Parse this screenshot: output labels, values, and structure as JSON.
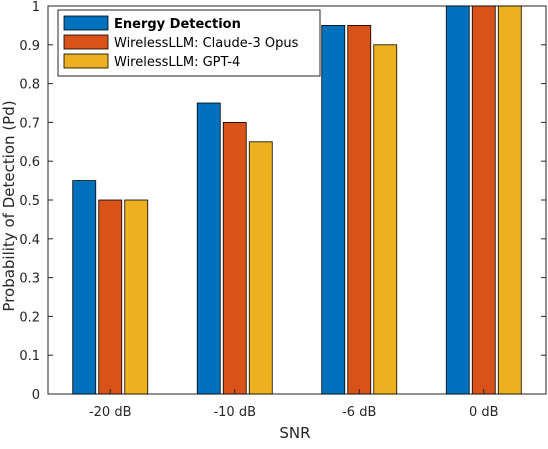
{
  "chart_data": {
    "type": "bar",
    "title": "",
    "xlabel": "SNR",
    "ylabel": "Probability of Detection (Pd)",
    "categories": [
      "-20 dB",
      "-10 dB",
      "-6 dB",
      "0 dB"
    ],
    "ylim": [
      0,
      1
    ],
    "yticks": [
      "0",
      "0.1",
      "0.2",
      "0.3",
      "0.4",
      "0.5",
      "0.6",
      "0.7",
      "0.8",
      "0.9",
      "1"
    ],
    "grid": false,
    "legend_position": "top-left",
    "series": [
      {
        "name": "Energy Detection",
        "color": "#0072BD",
        "values": [
          0.55,
          0.75,
          0.95,
          1.0
        ]
      },
      {
        "name": "WirelessLLM: Claude-3 Opus",
        "color": "#D95319",
        "values": [
          0.5,
          0.7,
          0.95,
          1.0
        ]
      },
      {
        "name": "WirelessLLM: GPT-4",
        "color": "#EDB120",
        "values": [
          0.5,
          0.65,
          0.9,
          1.0
        ]
      }
    ]
  }
}
